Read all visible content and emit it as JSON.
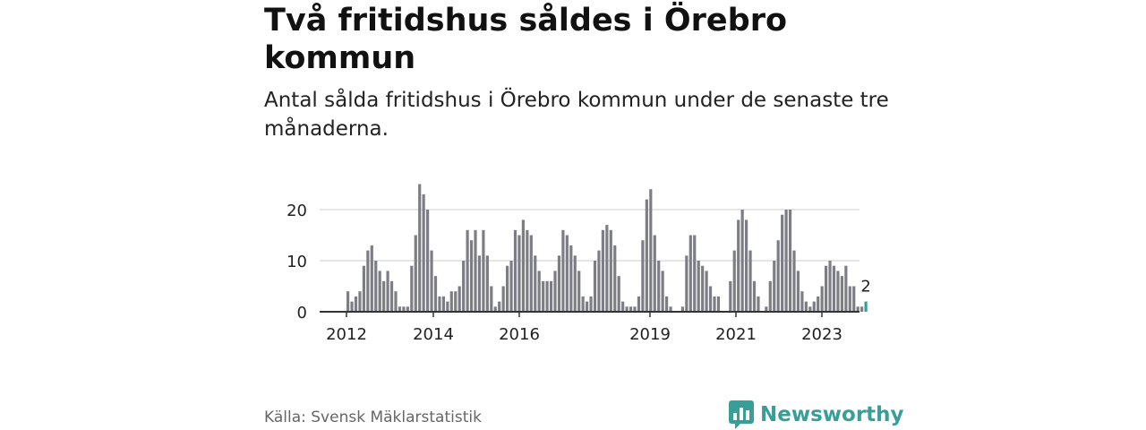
{
  "title": "Två fritidshus såldes i Örebro kommun",
  "subtitle": "Antal sålda fritidshus i Örebro kommun under de senaste tre månaderna.",
  "source": "Källa: Svensk Mäklarstatistik",
  "logo": {
    "text": "Newsworthy",
    "icon": "bar-chart-speech-bubble-icon"
  },
  "colors": {
    "bar": "#7d7d85",
    "highlight": "#3a9e98",
    "grid": "#dddddd",
    "axis": "#333333"
  },
  "chart_data": {
    "type": "bar",
    "title": "",
    "xlabel": "",
    "ylabel": "",
    "ylim": [
      0,
      26
    ],
    "grid": true,
    "y_ticks": [
      0,
      10,
      20
    ],
    "x_tick_labels": [
      "2012",
      "2014",
      "2016",
      "2019",
      "2021",
      "2023"
    ],
    "annotation": "2",
    "series": [
      {
        "values": [
          4,
          2,
          3,
          4,
          9,
          12,
          13,
          10,
          8,
          6,
          8,
          6,
          4,
          1,
          1,
          1,
          9,
          15,
          25,
          23,
          20,
          12,
          7,
          3,
          3,
          2,
          4,
          4,
          5,
          10,
          16,
          14,
          16,
          11,
          16,
          11,
          5,
          1,
          2,
          5,
          9,
          10,
          16,
          15,
          18,
          16,
          15,
          11,
          8,
          6,
          6,
          6,
          8,
          11,
          16,
          15,
          13,
          11,
          8,
          3,
          2,
          3,
          10,
          12,
          16,
          17,
          16,
          13,
          7,
          2,
          1,
          1,
          1,
          3,
          14,
          22,
          24,
          15,
          10,
          8,
          3,
          1,
          0,
          0,
          1,
          11,
          15,
          15,
          10,
          9,
          8,
          5,
          3,
          3,
          0,
          0,
          6,
          12,
          18,
          20,
          18,
          12,
          6,
          3,
          0,
          1,
          6,
          10,
          14,
          19,
          20,
          20,
          12,
          8,
          4,
          2,
          1,
          2,
          3,
          5,
          9,
          10,
          9,
          8,
          7,
          9,
          5,
          5,
          1,
          1,
          2
        ]
      }
    ]
  }
}
